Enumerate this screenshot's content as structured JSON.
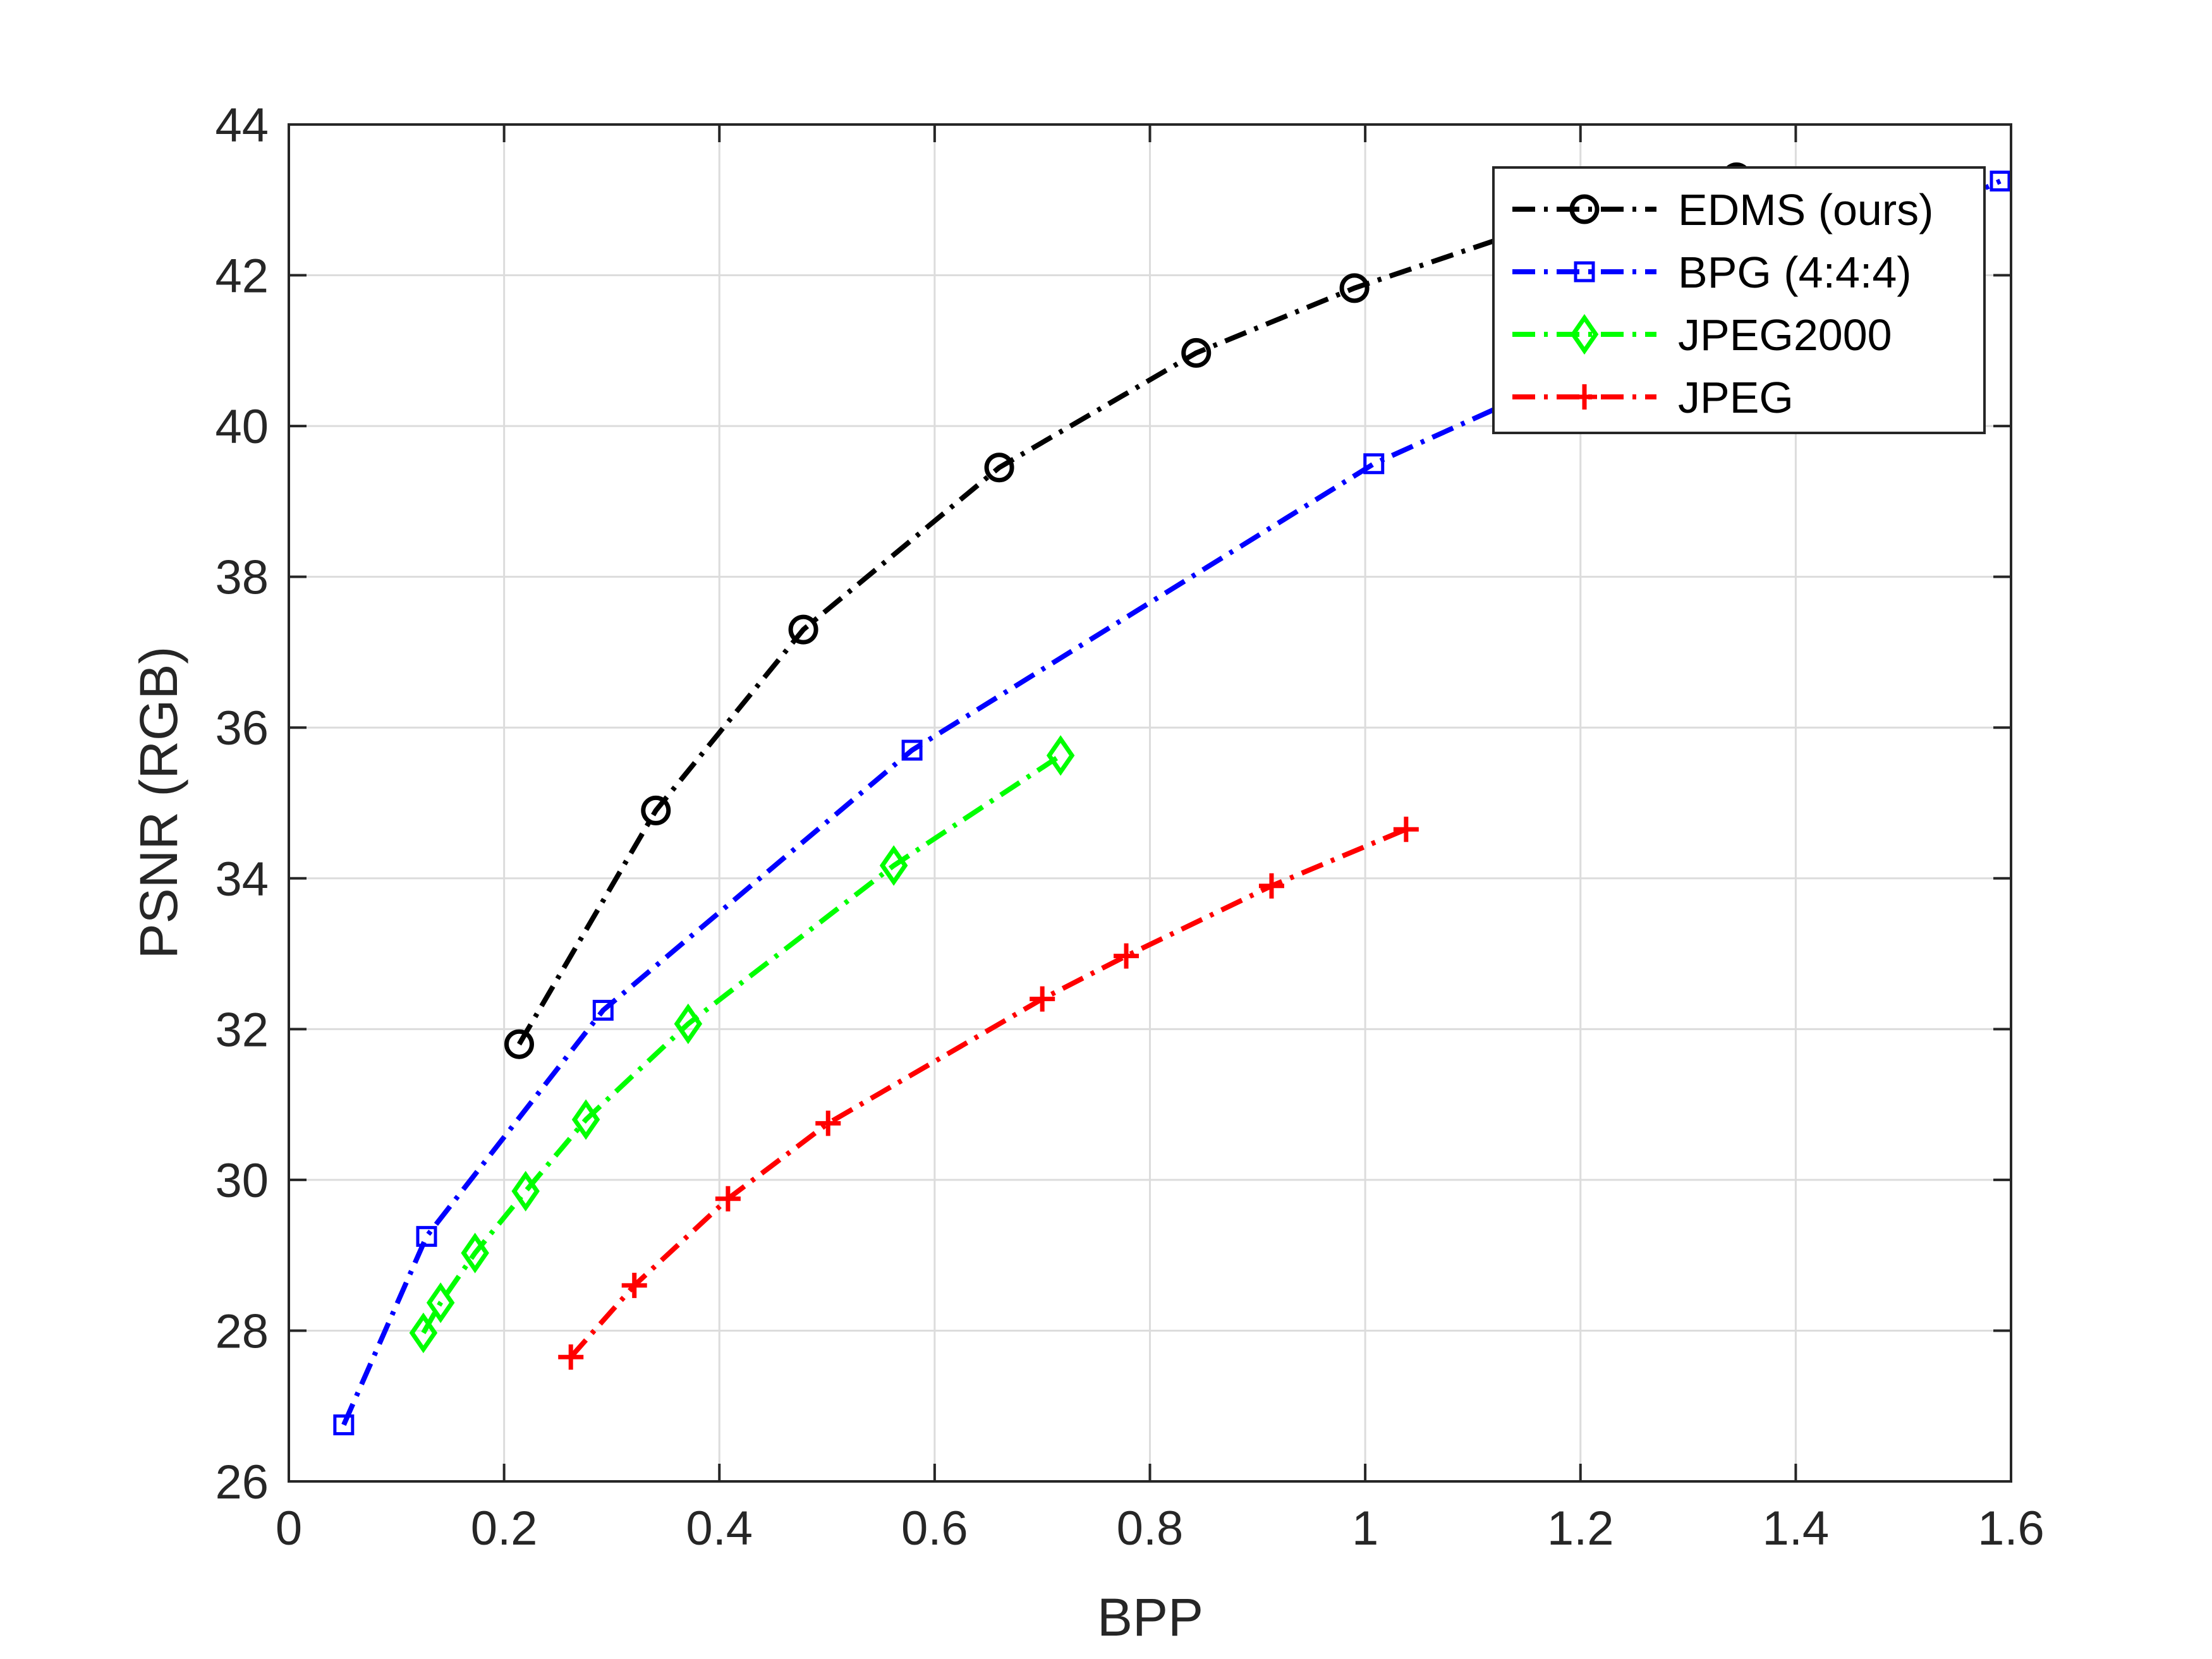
{
  "chart_data": {
    "type": "line",
    "xlabel": "BPP",
    "ylabel": "PSNR (RGB)",
    "xlim": [
      0,
      1.6
    ],
    "ylim": [
      26,
      44
    ],
    "xticks": [
      0,
      0.2,
      0.4,
      0.6,
      0.8,
      1,
      1.2,
      1.4,
      1.6
    ],
    "xtick_labels": [
      "0",
      "0.2",
      "0.4",
      "0.6",
      "0.8",
      "1",
      "1.2",
      "1.4",
      "1.6"
    ],
    "yticks": [
      26,
      28,
      30,
      32,
      34,
      36,
      38,
      40,
      42,
      44
    ],
    "ytick_labels": [
      "26",
      "28",
      "30",
      "32",
      "34",
      "36",
      "38",
      "40",
      "42",
      "44"
    ],
    "grid": true,
    "legend_position": "top-right",
    "series": [
      {
        "name": "EDMS (ours)",
        "color": "#000000",
        "marker": "circle",
        "line_style": "dash-dot",
        "x": [
          0.214,
          0.341,
          0.478,
          0.66,
          0.843,
          0.99,
          1.17,
          1.345
        ],
        "y": [
          31.8,
          34.9,
          37.3,
          39.45,
          40.97,
          41.83,
          42.7,
          43.3
        ]
      },
      {
        "name": "BPG (4:4:4)",
        "color": "#0000ff",
        "marker": "square",
        "line_style": "dash-dot",
        "x": [
          0.051,
          0.128,
          0.292,
          0.579,
          1.008,
          1.59
        ],
        "y": [
          26.75,
          29.25,
          32.25,
          35.7,
          39.5,
          43.25
        ]
      },
      {
        "name": "JPEG2000",
        "color": "#00ff00",
        "marker": "diamond",
        "line_style": "dash-dot",
        "x": [
          0.125,
          0.141,
          0.173,
          0.22,
          0.276,
          0.371,
          0.562,
          0.717
        ],
        "y": [
          27.97,
          28.37,
          29.03,
          29.85,
          30.8,
          32.07,
          34.17,
          35.63
        ]
      },
      {
        "name": "JPEG",
        "color": "#ff0000",
        "marker": "plus",
        "line_style": "dash-dot",
        "x": [
          0.262,
          0.321,
          0.408,
          0.501,
          0.7,
          0.778,
          0.913,
          1.038
        ],
        "y": [
          27.65,
          28.6,
          29.75,
          30.75,
          32.4,
          32.97,
          33.9,
          34.65
        ]
      }
    ]
  }
}
